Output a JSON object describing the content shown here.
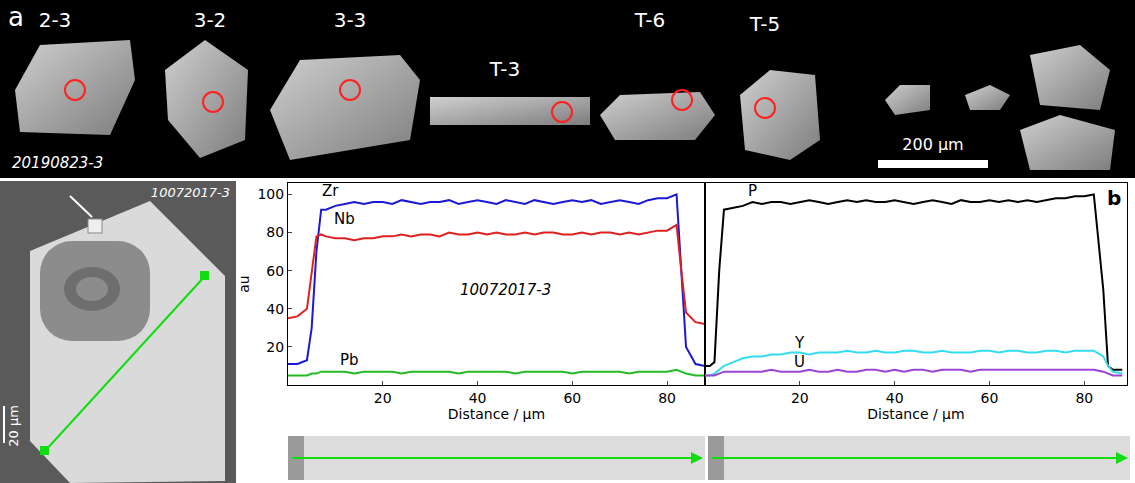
{
  "panel_a": {
    "label": "a",
    "grains": [
      "2-3",
      "3-2",
      "3-3",
      "T-3",
      "T-6",
      "T-5"
    ],
    "sample": "20190823-3",
    "scale_bar": "200 μm"
  },
  "sem_image": {
    "sample": "10072017-3",
    "scale_bar": "20 μm"
  },
  "panel_b": {
    "label": "b"
  },
  "chart_data": [
    {
      "type": "line",
      "x": [
        0,
        2,
        4,
        5,
        6,
        7,
        8,
        10,
        12,
        14,
        16,
        18,
        20,
        22,
        24,
        26,
        28,
        30,
        32,
        34,
        36,
        38,
        40,
        42,
        44,
        46,
        48,
        50,
        52,
        54,
        56,
        58,
        60,
        62,
        64,
        66,
        68,
        70,
        72,
        74,
        76,
        78,
        80,
        82,
        83,
        84,
        86,
        88
      ],
      "series": [
        {
          "name": "Zr",
          "color": "#1a1ad6",
          "label": {
            "x": 9,
            "y": 102
          },
          "values": [
            11,
            11,
            13,
            30,
            70,
            92,
            92,
            94,
            95,
            96,
            95,
            96,
            96,
            95,
            97,
            96,
            95,
            96,
            96,
            97,
            95,
            96,
            97,
            96,
            95,
            97,
            96,
            95,
            97,
            96,
            95,
            96,
            97,
            96,
            97,
            95,
            96,
            97,
            96,
            95,
            97,
            98,
            98,
            100,
            60,
            20,
            11,
            10
          ]
        },
        {
          "name": "Nb",
          "color": "#e02020",
          "label": {
            "x": 12,
            "y": 87
          },
          "values": [
            35,
            36,
            40,
            60,
            78,
            79,
            78,
            77,
            77,
            76,
            77,
            77,
            78,
            78,
            79,
            78,
            79,
            79,
            78,
            80,
            79,
            79,
            80,
            79,
            80,
            79,
            79,
            80,
            79,
            80,
            80,
            79,
            79,
            80,
            79,
            80,
            80,
            79,
            80,
            79,
            80,
            81,
            81,
            84,
            60,
            38,
            33,
            32
          ]
        },
        {
          "name": "Pb",
          "color": "#22bb22",
          "label": {
            "x": 13,
            "y": 13
          },
          "values": [
            5,
            5,
            5,
            6,
            6,
            7,
            7,
            7,
            7,
            6,
            7,
            7,
            7,
            7,
            6,
            7,
            7,
            7,
            7,
            7,
            6,
            7,
            7,
            7,
            7,
            7,
            6,
            7,
            7,
            7,
            7,
            7,
            6,
            7,
            7,
            7,
            7,
            7,
            6,
            7,
            7,
            7,
            7,
            8,
            7,
            6,
            5,
            5
          ]
        }
      ],
      "annotations": [
        {
          "text": "10072017-3",
          "x": 46,
          "y": 50
        }
      ],
      "xlabel": "Distance / μm",
      "ylabel": "au",
      "xlim": [
        0,
        88
      ],
      "ylim": [
        0,
        106
      ],
      "xticks": [
        20,
        40,
        60,
        80
      ],
      "yticks": [
        20,
        40,
        60,
        80,
        100
      ]
    },
    {
      "type": "line",
      "x": [
        0,
        1,
        2,
        3,
        4,
        6,
        8,
        10,
        12,
        14,
        16,
        18,
        20,
        22,
        24,
        26,
        28,
        30,
        32,
        34,
        36,
        38,
        40,
        42,
        44,
        46,
        48,
        50,
        52,
        54,
        56,
        58,
        60,
        62,
        64,
        66,
        68,
        70,
        72,
        74,
        76,
        78,
        80,
        82,
        84,
        85,
        86,
        88
      ],
      "series": [
        {
          "name": "P",
          "color": "#000000",
          "label": {
            "x": 10,
            "y": 102
          },
          "values": [
            10,
            10,
            12,
            60,
            92,
            93,
            94,
            96,
            95,
            96,
            96,
            95,
            96,
            97,
            96,
            95,
            96,
            97,
            96,
            97,
            96,
            96,
            97,
            96,
            95,
            96,
            97,
            96,
            95,
            97,
            96,
            96,
            97,
            96,
            97,
            96,
            97,
            96,
            97,
            98,
            98,
            99,
            99,
            100,
            50,
            10,
            8,
            8
          ]
        },
        {
          "name": "Y",
          "color": "#33dded",
          "label": {
            "x": 20,
            "y": 22
          },
          "values": [
            5,
            5,
            6,
            8,
            10,
            12,
            14,
            15,
            15,
            16,
            16,
            17,
            17,
            16,
            17,
            17,
            17,
            18,
            17,
            17,
            18,
            17,
            17,
            18,
            18,
            17,
            17,
            18,
            17,
            17,
            17,
            18,
            18,
            17,
            18,
            18,
            17,
            17,
            18,
            18,
            17,
            18,
            18,
            18,
            15,
            10,
            7,
            6
          ]
        },
        {
          "name": "U",
          "color": "#9b45d6",
          "label": {
            "x": 20,
            "y": 12.3
          },
          "values": [
            5,
            5,
            5,
            6,
            7,
            7,
            7,
            7,
            7,
            8,
            7,
            7,
            7,
            8,
            7,
            7,
            8,
            7,
            7,
            8,
            8,
            7,
            8,
            7,
            8,
            8,
            7,
            8,
            8,
            8,
            7,
            8,
            8,
            8,
            8,
            8,
            8,
            8,
            8,
            8,
            8,
            8,
            8,
            8,
            7,
            6,
            5,
            5
          ]
        }
      ],
      "xlabel": "Distance / μm",
      "xlim": [
        0,
        89
      ],
      "ylim": [
        0,
        106
      ],
      "xticks": [
        20,
        40,
        60,
        80
      ],
      "tick_labels": "x"
    }
  ]
}
